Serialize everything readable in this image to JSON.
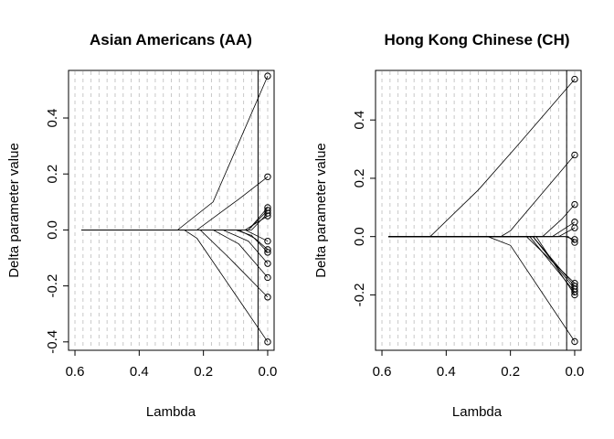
{
  "chart_data": [
    {
      "type": "line",
      "title": "Asian Americans (AA)",
      "xlabel": "Lambda",
      "ylabel": "Delta parameter value",
      "xlim": [
        0.62,
        -0.02
      ],
      "ylim": [
        -0.43,
        0.57
      ],
      "x_reversed": true,
      "x_ticks": [
        0.6,
        0.4,
        0.2,
        0.0
      ],
      "x_tick_labels": [
        "0.6",
        "0.4",
        "0.2",
        "0.0"
      ],
      "y_ticks": [
        -0.4,
        -0.2,
        0.0,
        0.2,
        0.4
      ],
      "y_tick_labels": [
        "-0.4",
        "-0.2",
        "0.0",
        "0.2",
        "0.4"
      ],
      "grid": "vertical dashed gray lines",
      "selected_lambda": 0.03,
      "series": [
        {
          "x": [
            0.58,
            0.28,
            0.17,
            0.0
          ],
          "values": [
            0,
            0,
            0.1,
            0.55
          ]
        },
        {
          "x": [
            0.58,
            0.22,
            0.09,
            0.0
          ],
          "values": [
            0,
            0,
            0.11,
            0.19
          ]
        },
        {
          "x": [
            0.58,
            0.26,
            0.22,
            0.0
          ],
          "values": [
            0,
            0,
            -0.03,
            -0.4
          ]
        },
        {
          "x": [
            0.58,
            0.21,
            0.12,
            0.0
          ],
          "values": [
            0,
            0,
            -0.1,
            -0.24
          ]
        },
        {
          "x": [
            0.58,
            0.17,
            0.09,
            0.0
          ],
          "values": [
            0,
            0,
            -0.05,
            -0.17
          ]
        },
        {
          "x": [
            0.58,
            0.14,
            0.06,
            0.0
          ],
          "values": [
            0,
            0,
            -0.04,
            -0.12
          ]
        },
        {
          "x": [
            0.58,
            0.1,
            0.05,
            0.0
          ],
          "values": [
            0,
            0,
            -0.02,
            -0.08
          ]
        },
        {
          "x": [
            0.58,
            0.09,
            0.04,
            0.0
          ],
          "values": [
            0,
            0,
            -0.03,
            -0.07
          ]
        },
        {
          "x": [
            0.58,
            0.07,
            0.0
          ],
          "values": [
            0,
            0,
            -0.04
          ]
        },
        {
          "x": [
            0.58,
            0.07,
            0.0
          ],
          "values": [
            0,
            0,
            0.05
          ]
        },
        {
          "x": [
            0.58,
            0.06,
            0.0
          ],
          "values": [
            0,
            0,
            0.07
          ]
        },
        {
          "x": [
            0.58,
            0.06,
            0.0
          ],
          "values": [
            0,
            0,
            0.08
          ]
        },
        {
          "x": [
            0.58,
            0.05,
            0.0
          ],
          "values": [
            0,
            0,
            0.06
          ]
        }
      ]
    },
    {
      "type": "line",
      "title": "Hong Kong Chinese (CH)",
      "xlabel": "Lambda",
      "ylabel": "Delta parameter value",
      "xlim": [
        0.62,
        -0.02
      ],
      "ylim": [
        -0.39,
        0.57
      ],
      "x_reversed": true,
      "x_ticks": [
        0.6,
        0.4,
        0.2,
        0.0
      ],
      "x_tick_labels": [
        "0.6",
        "0.4",
        "0.2",
        "0.0"
      ],
      "y_ticks": [
        -0.2,
        0.0,
        0.2,
        0.4
      ],
      "y_tick_labels": [
        "-0.2",
        "0.0",
        "0.2",
        "0.4"
      ],
      "grid": "vertical dashed gray lines",
      "selected_lambda": 0.025,
      "series": [
        {
          "x": [
            0.58,
            0.45,
            0.3,
            0.18,
            0.0
          ],
          "values": [
            0,
            0,
            0.16,
            0.31,
            0.54
          ]
        },
        {
          "x": [
            0.58,
            0.23,
            0.2,
            0.1,
            0.0
          ],
          "values": [
            0,
            0,
            0.02,
            0.15,
            0.28
          ]
        },
        {
          "x": [
            0.58,
            0.27,
            0.2,
            0.0
          ],
          "values": [
            0,
            0,
            -0.03,
            -0.36
          ]
        },
        {
          "x": [
            0.58,
            0.1,
            0.04,
            0.0
          ],
          "values": [
            0,
            0,
            0.06,
            0.11
          ]
        },
        {
          "x": [
            0.58,
            0.07,
            0.0
          ],
          "values": [
            0,
            0,
            0.05
          ]
        },
        {
          "x": [
            0.58,
            0.05,
            0.0
          ],
          "values": [
            0,
            0,
            0.03
          ]
        },
        {
          "x": [
            0.58,
            0.03,
            0.0
          ],
          "values": [
            0,
            0,
            -0.01
          ]
        },
        {
          "x": [
            0.58,
            0.02,
            0.0
          ],
          "values": [
            0,
            0,
            -0.02
          ]
        },
        {
          "x": [
            0.58,
            0.15,
            0.0
          ],
          "values": [
            0,
            0,
            -0.16
          ]
        },
        {
          "x": [
            0.58,
            0.13,
            0.0
          ],
          "values": [
            0,
            0,
            -0.17
          ]
        },
        {
          "x": [
            0.58,
            0.13,
            0.0
          ],
          "values": [
            0,
            0,
            -0.18
          ]
        },
        {
          "x": [
            0.58,
            0.14,
            0.0
          ],
          "values": [
            0,
            0,
            -0.19
          ]
        },
        {
          "x": [
            0.58,
            0.12,
            0.0
          ],
          "values": [
            0,
            0,
            -0.2
          ]
        }
      ]
    }
  ]
}
